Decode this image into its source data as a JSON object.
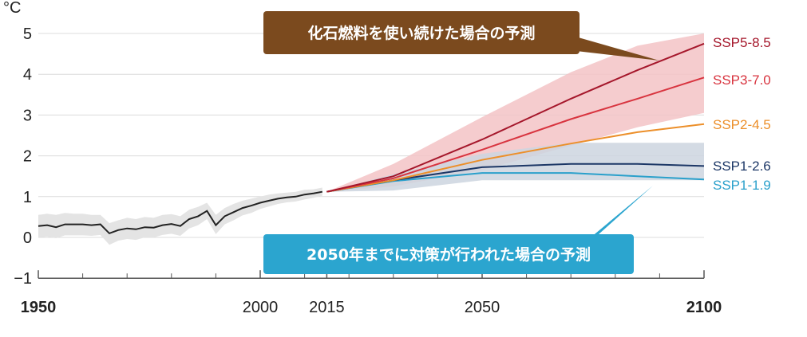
{
  "chart_data": {
    "type": "line",
    "ylabel": "°C",
    "ylim": [
      -1,
      5
    ],
    "xlim": [
      1950,
      2100
    ],
    "y_ticks": [
      "5",
      "4",
      "3",
      "2",
      "1",
      "0",
      "−1"
    ],
    "x_ticks": [
      {
        "value": 1950,
        "label": "1950",
        "bold": true
      },
      {
        "value": 2000,
        "label": "2000",
        "bold": false
      },
      {
        "value": 2015,
        "label": "2015",
        "bold": false
      },
      {
        "value": 2050,
        "label": "2050",
        "bold": false
      },
      {
        "value": 2100,
        "label": "2100",
        "bold": true
      }
    ],
    "grid": true,
    "historical": {
      "color": "#222222",
      "x": [
        1950,
        1952,
        1954,
        1956,
        1958,
        1960,
        1962,
        1964,
        1966,
        1968,
        1970,
        1972,
        1974,
        1976,
        1978,
        1980,
        1982,
        1984,
        1986,
        1988,
        1990,
        1992,
        1994,
        1996,
        1998,
        2000,
        2002,
        2004,
        2006,
        2008,
        2010,
        2012,
        2014
      ],
      "y": [
        0.28,
        0.3,
        0.25,
        0.32,
        0.32,
        0.32,
        0.3,
        0.32,
        0.1,
        0.18,
        0.22,
        0.2,
        0.25,
        0.24,
        0.3,
        0.33,
        0.28,
        0.45,
        0.52,
        0.65,
        0.3,
        0.52,
        0.62,
        0.72,
        0.78,
        0.85,
        0.9,
        0.95,
        0.98,
        1.0,
        1.05,
        1.08,
        1.12
      ],
      "band_upper": [
        0.55,
        0.58,
        0.55,
        0.6,
        0.58,
        0.58,
        0.55,
        0.55,
        0.35,
        0.42,
        0.48,
        0.45,
        0.5,
        0.48,
        0.55,
        0.57,
        0.52,
        0.68,
        0.75,
        0.85,
        0.55,
        0.72,
        0.82,
        0.9,
        0.95,
        1.0,
        1.05,
        1.08,
        1.1,
        1.12,
        1.17,
        1.18,
        1.22
      ],
      "band_lower": [
        0.0,
        0.02,
        -0.02,
        0.05,
        0.05,
        0.05,
        0.04,
        0.06,
        -0.18,
        -0.08,
        -0.04,
        -0.06,
        0.0,
        0.0,
        0.06,
        0.09,
        0.04,
        0.22,
        0.3,
        0.45,
        0.08,
        0.32,
        0.42,
        0.54,
        0.6,
        0.7,
        0.76,
        0.82,
        0.86,
        0.88,
        0.93,
        0.97,
        1.02
      ]
    },
    "scenario_x": [
      2015,
      2030,
      2050,
      2070,
      2085,
      2100
    ],
    "series": [
      {
        "name": "SSP5-8.5",
        "color": "#a5172b",
        "values": [
          1.12,
          1.5,
          2.4,
          3.4,
          4.1,
          4.75
        ]
      },
      {
        "name": "SSP3-7.0",
        "color": "#d8343f",
        "values": [
          1.12,
          1.45,
          2.15,
          2.9,
          3.4,
          3.92
        ]
      },
      {
        "name": "SSP2-4.5",
        "color": "#ec8f2a",
        "values": [
          1.12,
          1.4,
          1.9,
          2.3,
          2.58,
          2.78
        ]
      },
      {
        "name": "SSP1-2.6",
        "color": "#1c3766",
        "values": [
          1.12,
          1.4,
          1.72,
          1.8,
          1.8,
          1.75
        ]
      },
      {
        "name": "SSP1-1.9",
        "color": "#2aa0cb",
        "values": [
          1.12,
          1.38,
          1.58,
          1.58,
          1.5,
          1.42
        ]
      }
    ],
    "bands": [
      {
        "name": "SSP5-8.5 range",
        "color": "#f3c3c6",
        "upper": [
          1.12,
          1.8,
          2.95,
          4.05,
          4.7,
          5.0
        ],
        "lower": [
          1.12,
          1.25,
          1.65,
          2.25,
          2.7,
          3.05
        ]
      },
      {
        "name": "SSP1-2.6 range",
        "color": "#cdd5df",
        "upper": [
          1.12,
          1.55,
          2.05,
          2.32,
          2.32,
          2.32
        ],
        "lower": [
          1.12,
          1.15,
          1.4,
          1.4,
          1.4,
          1.4
        ]
      }
    ],
    "annotations": [
      {
        "text": "化石燃料を使い続けた場合の予測",
        "color": "#7b4a1e",
        "points_to": "SSP5-8.5"
      },
      {
        "text": "2050年までに対策が行われた場合の予測",
        "color": "#2ba5cf",
        "points_to": "SSP1-1.9"
      }
    ]
  }
}
